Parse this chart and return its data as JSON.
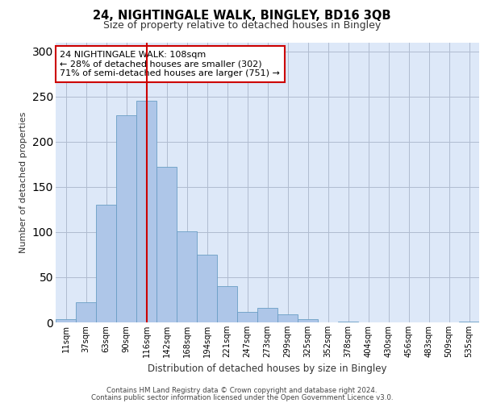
{
  "title1": "24, NIGHTINGALE WALK, BINGLEY, BD16 3QB",
  "title2": "Size of property relative to detached houses in Bingley",
  "xlabel": "Distribution of detached houses by size in Bingley",
  "ylabel": "Number of detached properties",
  "categories": [
    "11sqm",
    "37sqm",
    "63sqm",
    "90sqm",
    "116sqm",
    "142sqm",
    "168sqm",
    "194sqm",
    "221sqm",
    "247sqm",
    "273sqm",
    "299sqm",
    "325sqm",
    "352sqm",
    "378sqm",
    "404sqm",
    "430sqm",
    "456sqm",
    "483sqm",
    "509sqm",
    "535sqm"
  ],
  "values": [
    4,
    22,
    130,
    229,
    245,
    172,
    101,
    75,
    40,
    12,
    16,
    9,
    4,
    0,
    1,
    0,
    0,
    0,
    0,
    0,
    1
  ],
  "bar_color": "#aec6e8",
  "bar_edge_color": "#6a9ec5",
  "vline_x": 4.0,
  "vline_color": "#cc0000",
  "annotation_text": "24 NIGHTINGALE WALK: 108sqm\n← 28% of detached houses are smaller (302)\n71% of semi-detached houses are larger (751) →",
  "annotation_box_color": "#ffffff",
  "annotation_box_edge": "#cc0000",
  "ylim": [
    0,
    310
  ],
  "yticks": [
    0,
    50,
    100,
    150,
    200,
    250,
    300
  ],
  "background_color": "#dde8f8",
  "footer1": "Contains HM Land Registry data © Crown copyright and database right 2024.",
  "footer2": "Contains public sector information licensed under the Open Government Licence v3.0."
}
